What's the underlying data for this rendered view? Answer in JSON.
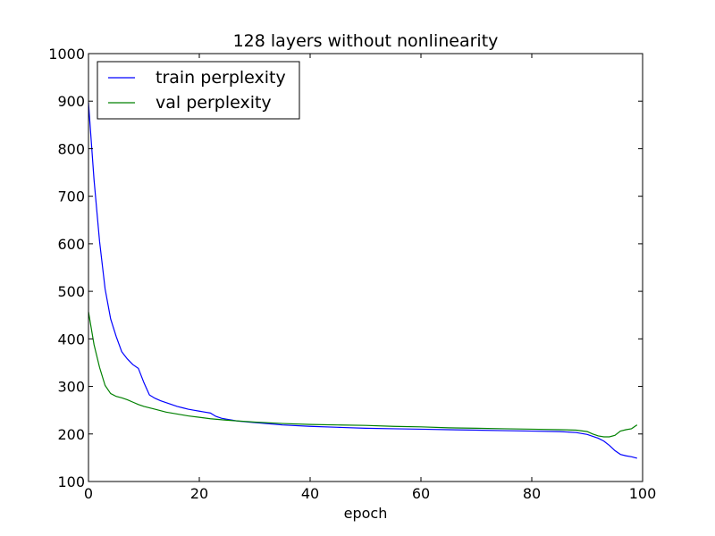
{
  "chart_data": {
    "type": "line",
    "title": "128 layers without nonlinearity",
    "xlabel": "epoch",
    "ylabel": "",
    "xlim": [
      0,
      100
    ],
    "ylim": [
      100,
      1000
    ],
    "xticks": [
      0,
      20,
      40,
      60,
      80,
      100
    ],
    "yticks": [
      100,
      200,
      300,
      400,
      500,
      600,
      700,
      800,
      900,
      1000
    ],
    "grid": false,
    "legend_position": "top-left",
    "series": [
      {
        "name": "train perplexity",
        "color": "#0000ff",
        "x": [
          0,
          1,
          2,
          3,
          4,
          5,
          6,
          7,
          8,
          9,
          10,
          11,
          12,
          13,
          14,
          15,
          16,
          17,
          18,
          19,
          20,
          21,
          22,
          23,
          24,
          25,
          26,
          27,
          28,
          29,
          30,
          35,
          40,
          45,
          50,
          55,
          60,
          65,
          70,
          75,
          80,
          85,
          88,
          90,
          92,
          93,
          94,
          95,
          96,
          97,
          98,
          99
        ],
        "y": [
          897,
          735,
          605,
          505,
          442,
          405,
          373,
          358,
          346,
          338,
          308,
          282,
          275,
          270,
          266,
          262,
          258,
          255,
          252,
          250,
          248,
          246,
          244,
          237,
          233,
          231,
          229,
          227,
          226,
          225,
          224,
          219,
          216,
          214,
          212,
          211,
          210,
          209,
          208,
          207,
          206,
          205,
          203,
          199,
          191,
          185,
          176,
          165,
          157,
          154,
          152,
          149
        ]
      },
      {
        "name": "val perplexity",
        "color": "#008000",
        "x": [
          0,
          1,
          2,
          3,
          4,
          5,
          6,
          7,
          8,
          9,
          10,
          12,
          14,
          16,
          18,
          20,
          22,
          25,
          30,
          35,
          40,
          45,
          50,
          55,
          60,
          65,
          70,
          75,
          80,
          85,
          88,
          90,
          91,
          92,
          93,
          94,
          95,
          96,
          97,
          98,
          99
        ],
        "y": [
          457,
          388,
          340,
          302,
          285,
          279,
          276,
          272,
          267,
          262,
          258,
          252,
          246,
          242,
          238,
          235,
          232,
          229,
          225,
          222,
          220,
          219,
          218,
          216,
          215,
          213,
          212,
          211,
          210,
          209,
          208,
          205,
          200,
          196,
          194,
          194,
          197,
          206,
          209,
          211,
          219
        ]
      }
    ]
  }
}
